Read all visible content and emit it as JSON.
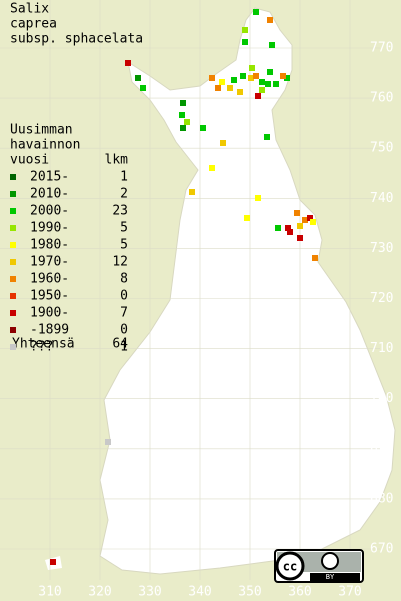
{
  "title": [
    "Salix",
    "caprea",
    "subsp. sphacelata"
  ],
  "legend": {
    "header": [
      "Uusimman",
      "havainnon",
      "vuosi"
    ],
    "count_header": "lkm",
    "rows": [
      {
        "label": "2015-",
        "count": 1,
        "color": "#006400"
      },
      {
        "label": "2010-",
        "count": 2,
        "color": "#009600"
      },
      {
        "label": "2000-",
        "count": 23,
        "color": "#00c800"
      },
      {
        "label": "1990-",
        "count": 5,
        "color": "#96e600"
      },
      {
        "label": "1980-",
        "count": 5,
        "color": "#ffff00"
      },
      {
        "label": "1970-",
        "count": 12,
        "color": "#f0c800"
      },
      {
        "label": "1960-",
        "count": 8,
        "color": "#f08200"
      },
      {
        "label": "1950-",
        "count": 0,
        "color": "#e63200"
      },
      {
        "label": "1900-",
        "count": 7,
        "color": "#c80000"
      },
      {
        "label": "-1899",
        "count": 0,
        "color": "#8c0000"
      },
      {
        "label": "???",
        "count": 1,
        "color": "#c8c8c8"
      }
    ],
    "total_label": "Yhteensä",
    "total": 64
  },
  "xticks": [
    310,
    320,
    330,
    340,
    350,
    360,
    370
  ],
  "yticks": [
    670,
    680,
    690,
    700,
    710,
    720,
    730,
    740,
    750,
    760,
    770
  ],
  "license": [
    "cc",
    "BY"
  ]
}
